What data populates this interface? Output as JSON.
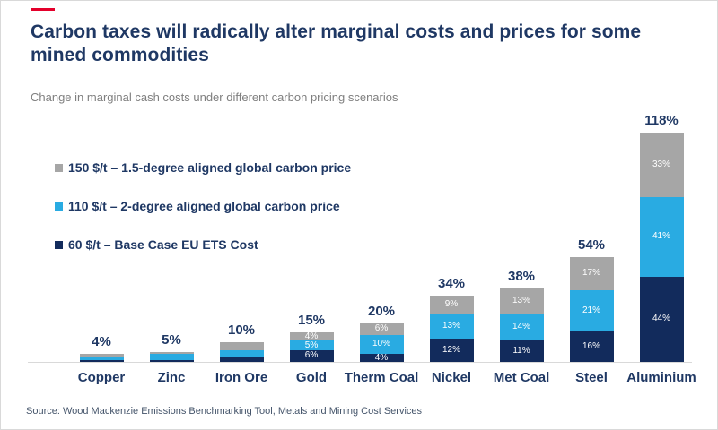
{
  "slide": {
    "title": "Carbon taxes will radically alter marginal costs and prices for some mined commodities",
    "subtitle": "Change in marginal cash costs under different carbon pricing scenarios",
    "source": "Source: Wood Mackenzie Emissions Benchmarking Tool, Metals and Mining Cost Services",
    "accent_color": "#e4002b",
    "text_color": "#1f3864"
  },
  "chart_data": {
    "type": "bar",
    "variant": "stacked-column",
    "title": "Carbon taxes will radically alter marginal costs and prices for some mined commodities",
    "subtitle": "Change in marginal cash costs under different carbon pricing scenarios",
    "xlabel": "",
    "ylabel": "",
    "grid": false,
    "legend_position": "upper-left",
    "baseline_color": "#d9d9d9",
    "label_color": "#1f3864",
    "categories": [
      "Copper",
      "Zinc",
      "Iron Ore",
      "Gold",
      "Therm Coal",
      "Nickel",
      "Met Coal",
      "Steel",
      "Aluminium"
    ],
    "series": [
      {
        "name": "60 $/t – Base Case EU ETS Cost",
        "color": "#122b5c",
        "values": [
          1,
          1,
          3,
          6,
          4,
          12,
          11,
          16,
          44
        ]
      },
      {
        "name": "110 $/t – 2-degree aligned global carbon price",
        "color": "#29abe2",
        "values": [
          2,
          3,
          3,
          5,
          10,
          13,
          14,
          21,
          41
        ]
      },
      {
        "name": "150 $/t – 1.5-degree aligned global carbon price",
        "color": "#a6a6a6",
        "values": [
          1,
          1,
          4,
          4,
          6,
          9,
          13,
          17,
          33
        ]
      }
    ],
    "totals": [
      4,
      5,
      10,
      15,
      20,
      34,
      38,
      54,
      118
    ],
    "total_labels": [
      "4%",
      "5%",
      "10%",
      "15%",
      "20%",
      "34%",
      "38%",
      "54%",
      "118%"
    ],
    "segment_labels_visible": [
      false,
      false,
      false,
      true,
      true,
      true,
      true,
      true,
      true
    ],
    "segment_label_format": "percent"
  }
}
